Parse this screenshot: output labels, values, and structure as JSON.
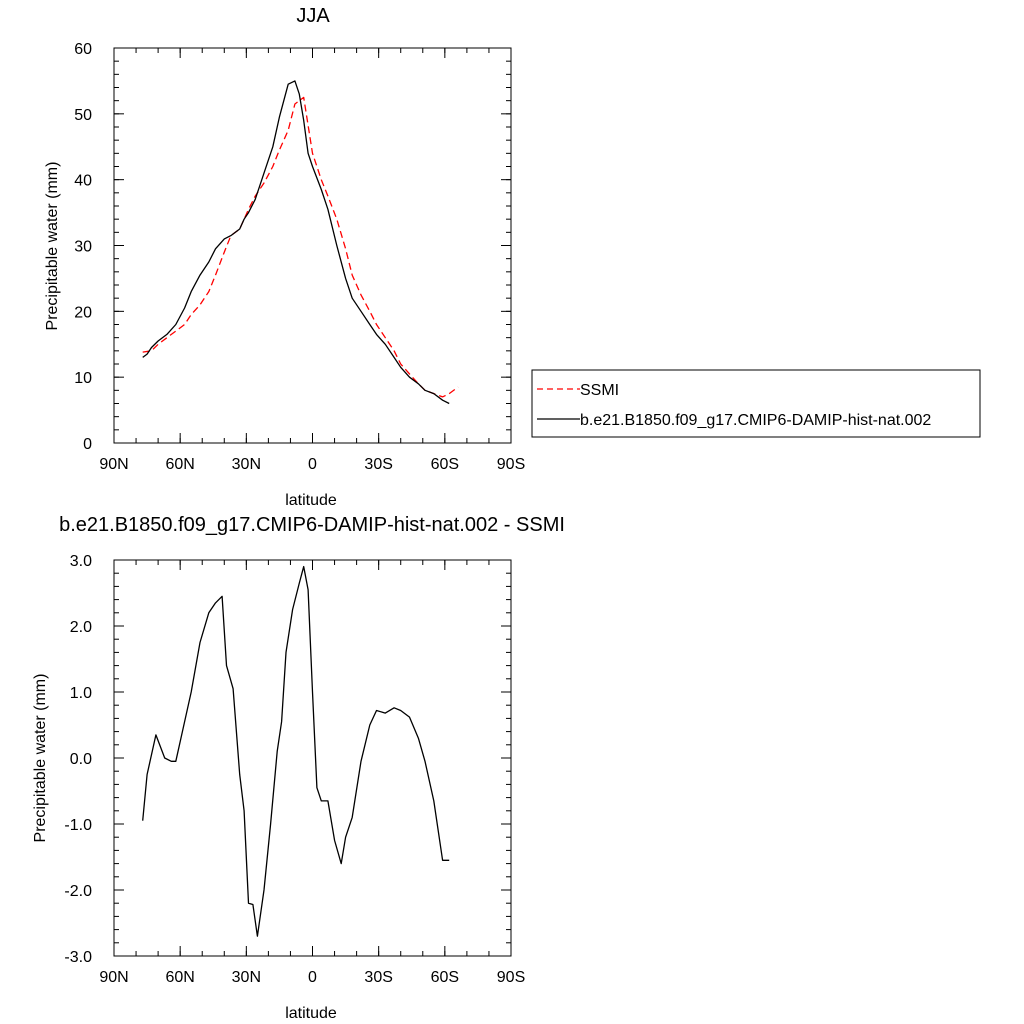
{
  "chart_data": [
    {
      "type": "line",
      "title": "JJA",
      "xlabel": "latitude",
      "ylabel": "Precipitable water (mm)",
      "xlim": [
        -90,
        90
      ],
      "ylim": [
        0,
        60
      ],
      "x_ticks": [
        {
          "value": -90,
          "label": "90N"
        },
        {
          "value": -60,
          "label": "60N"
        },
        {
          "value": -30,
          "label": "30N"
        },
        {
          "value": 0,
          "label": "0"
        },
        {
          "value": 30,
          "label": "30S"
        },
        {
          "value": 60,
          "label": "60S"
        },
        {
          "value": 90,
          "label": "90S"
        }
      ],
      "y_ticks": [
        {
          "value": 0,
          "label": "0"
        },
        {
          "value": 10,
          "label": "10"
        },
        {
          "value": 20,
          "label": "20"
        },
        {
          "value": 30,
          "label": "30"
        },
        {
          "value": 40,
          "label": "40"
        },
        {
          "value": 50,
          "label": "50"
        },
        {
          "value": 60,
          "label": "60"
        }
      ],
      "legend_position": "right",
      "series": [
        {
          "name": "SSMI",
          "color": "#ff0000",
          "dash": "dashed",
          "x": [
            -77,
            -73,
            -70,
            -66,
            -62,
            -58,
            -55,
            -51,
            -47,
            -44,
            -40,
            -37,
            -33,
            -29,
            -26,
            -22,
            -18,
            -15,
            -11,
            -8,
            -4,
            0,
            4,
            7,
            11,
            15,
            18,
            22,
            26,
            29,
            33,
            37,
            40,
            44,
            48,
            51,
            55,
            59,
            62,
            66
          ],
          "values": [
            13.8,
            14.0,
            15.0,
            16.0,
            17.0,
            18.0,
            19.5,
            21.0,
            23.0,
            25.5,
            29.0,
            31.5,
            32.5,
            35.5,
            37.5,
            39.5,
            42.0,
            44.5,
            47.5,
            51.5,
            52.5,
            44.0,
            40.0,
            37.5,
            34.0,
            29.5,
            25.5,
            22.5,
            20.0,
            18.0,
            16.0,
            14.0,
            12.0,
            10.5,
            9.0,
            8.0,
            7.5,
            7.0,
            7.5,
            8.5
          ]
        },
        {
          "name": "b.e21.B1850.f09_g17.CMIP6-DAMIP-hist-nat.002",
          "color": "#000000",
          "dash": "solid",
          "x": [
            -77,
            -75,
            -73,
            -70,
            -66,
            -62,
            -58,
            -55,
            -51,
            -47,
            -44,
            -40,
            -37,
            -33,
            -31,
            -29,
            -26,
            -22,
            -18,
            -15,
            -11,
            -8,
            -6,
            -4,
            -2,
            0,
            4,
            7,
            11,
            15,
            18,
            22,
            26,
            29,
            33,
            37,
            40,
            44,
            48,
            51,
            55,
            59,
            62
          ],
          "values": [
            13.0,
            13.5,
            14.5,
            15.5,
            16.5,
            18.0,
            20.5,
            23.0,
            25.5,
            27.5,
            29.5,
            31.0,
            31.5,
            32.5,
            34.0,
            35.0,
            37.0,
            41.0,
            45.0,
            49.5,
            54.5,
            55.0,
            53.0,
            49.0,
            44.0,
            42.0,
            38.5,
            35.5,
            30.0,
            25.0,
            22.0,
            20.0,
            18.0,
            16.5,
            15.0,
            13.0,
            11.5,
            10.0,
            9.0,
            8.0,
            7.5,
            6.5,
            6.0
          ]
        }
      ]
    },
    {
      "type": "line",
      "title": "b.e21.B1850.f09_g17.CMIP6-DAMIP-hist-nat.002 - SSMI",
      "xlabel": "latitude",
      "ylabel": "Precipitable water (mm)",
      "xlim": [
        -90,
        90
      ],
      "ylim": [
        -3,
        3
      ],
      "x_ticks": [
        {
          "value": -90,
          "label": "90N"
        },
        {
          "value": -60,
          "label": "60N"
        },
        {
          "value": -30,
          "label": "30N"
        },
        {
          "value": 0,
          "label": "0"
        },
        {
          "value": 30,
          "label": "30S"
        },
        {
          "value": 60,
          "label": "60S"
        },
        {
          "value": 90,
          "label": "90S"
        }
      ],
      "y_ticks": [
        {
          "value": -3,
          "label": "-3.0"
        },
        {
          "value": -2,
          "label": "-2.0"
        },
        {
          "value": -1,
          "label": "-1.0"
        },
        {
          "value": 0,
          "label": "0.0"
        },
        {
          "value": 1,
          "label": "1.0"
        },
        {
          "value": 2,
          "label": "2.0"
        },
        {
          "value": 3,
          "label": "3.0"
        }
      ],
      "series": [
        {
          "color": "#000000",
          "dash": "solid",
          "x": [
            -77,
            -75,
            -71,
            -67,
            -64,
            -62,
            -59,
            -55,
            -51,
            -47,
            -44,
            -41,
            -39,
            -36,
            -33,
            -31,
            -29,
            -27,
            -25,
            -22,
            -19,
            -16,
            -14,
            -12,
            -9,
            -6,
            -4,
            -2,
            0,
            2,
            4,
            7,
            10,
            13,
            15,
            18,
            22,
            26,
            29,
            33,
            37,
            40,
            44,
            48,
            51,
            55,
            59,
            62
          ],
          "values": [
            -0.95,
            -0.25,
            0.35,
            0.0,
            -0.05,
            -0.05,
            0.4,
            1.0,
            1.75,
            2.2,
            2.35,
            2.45,
            1.4,
            1.05,
            -0.25,
            -0.8,
            -2.2,
            -2.22,
            -2.7,
            -2.0,
            -1.0,
            0.1,
            0.55,
            1.6,
            2.25,
            2.65,
            2.9,
            2.55,
            1.0,
            -0.45,
            -0.65,
            -0.65,
            -1.25,
            -1.6,
            -1.2,
            -0.9,
            -0.05,
            0.5,
            0.72,
            0.68,
            0.76,
            0.72,
            0.62,
            0.3,
            -0.05,
            -0.65,
            -1.55,
            -1.55
          ]
        }
      ]
    }
  ]
}
